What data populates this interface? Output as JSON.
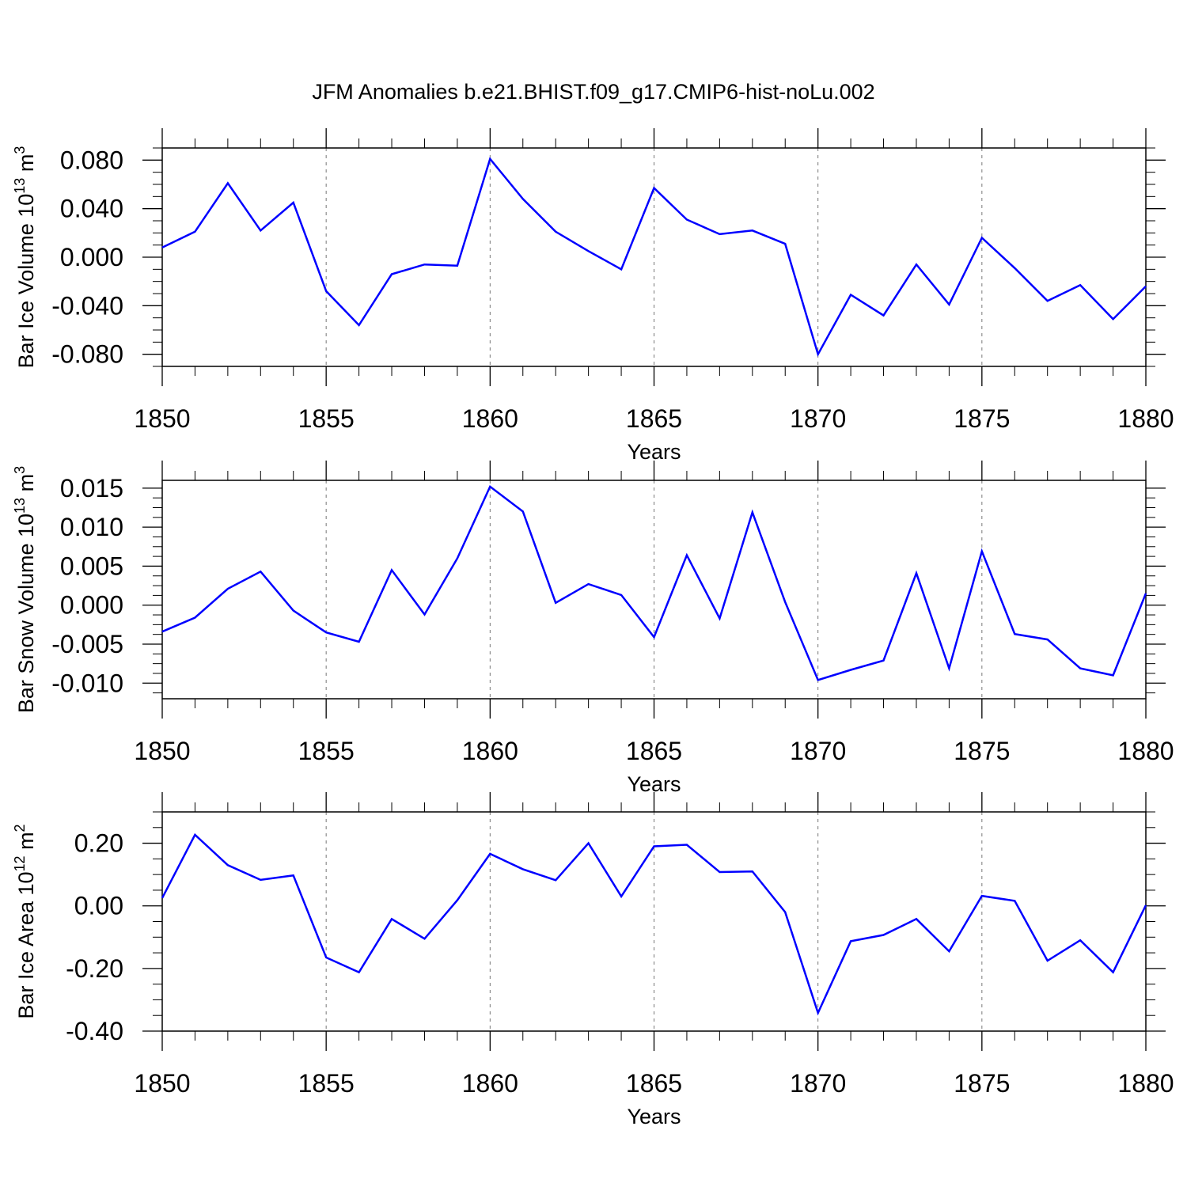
{
  "title": "JFM Anomalies b.e21.BHIST.f09_g17.CMIP6-hist-noLu.002",
  "chart_data": [
    {
      "type": "line",
      "xlabel": "Years",
      "ylabel": "Bar Ice Volume 10",
      "ylabel_exp": "13",
      "ylabel_unit": " m",
      "ylabel_unit_exp": "3",
      "xlim": [
        1850,
        1880
      ],
      "ylim": [
        -0.09,
        0.09
      ],
      "xticks": [
        1850,
        1855,
        1860,
        1865,
        1870,
        1875,
        1880
      ],
      "yticks": [
        "0.080",
        "0.040",
        "0.000",
        "-0.040",
        "-0.080"
      ],
      "ytick_values": [
        0.08,
        0.04,
        0.0,
        -0.04,
        -0.08
      ],
      "grid": "vertical dashed at major x ticks",
      "color": "#0000ff",
      "series": [
        {
          "x": [
            1850,
            1851,
            1852,
            1853,
            1854,
            1855,
            1856,
            1857,
            1858,
            1859,
            1860,
            1861,
            1862,
            1863,
            1864,
            1865,
            1866,
            1867,
            1868,
            1869,
            1870,
            1871,
            1872,
            1873,
            1874,
            1875,
            1876,
            1877,
            1878,
            1879,
            1880
          ],
          "values": [
            0.008,
            0.021,
            0.061,
            0.022,
            0.045,
            -0.028,
            -0.056,
            -0.014,
            -0.006,
            -0.007,
            0.081,
            0.048,
            0.021,
            0.005,
            -0.01,
            0.057,
            0.031,
            0.019,
            0.022,
            0.011,
            -0.08,
            -0.031,
            -0.048,
            -0.006,
            -0.039,
            0.016,
            -0.009,
            -0.036,
            -0.023,
            -0.051,
            -0.024
          ]
        }
      ]
    },
    {
      "type": "line",
      "xlabel": "Years",
      "ylabel": "Bar Snow Volume 10",
      "ylabel_exp": "13",
      "ylabel_unit": " m",
      "ylabel_unit_exp": "3",
      "xlim": [
        1850,
        1880
      ],
      "ylim": [
        -0.012,
        0.016
      ],
      "xticks": [
        1850,
        1855,
        1860,
        1865,
        1870,
        1875,
        1880
      ],
      "yticks": [
        "0.015",
        "0.010",
        "0.005",
        "0.000",
        "-0.005",
        "-0.010"
      ],
      "ytick_values": [
        0.015,
        0.01,
        0.005,
        0.0,
        -0.005,
        -0.01
      ],
      "grid": "vertical dashed at major x ticks",
      "color": "#0000ff",
      "series": [
        {
          "x": [
            1850,
            1851,
            1852,
            1853,
            1854,
            1855,
            1856,
            1857,
            1858,
            1859,
            1860,
            1861,
            1862,
            1863,
            1864,
            1865,
            1866,
            1867,
            1868,
            1869,
            1870,
            1871,
            1872,
            1873,
            1874,
            1875,
            1876,
            1877,
            1878,
            1879,
            1880
          ],
          "values": [
            -0.0034,
            -0.0016,
            0.0021,
            0.0043,
            -0.0007,
            -0.0035,
            -0.0047,
            0.0045,
            -0.0012,
            0.006,
            0.0152,
            0.012,
            0.0003,
            0.0027,
            0.0013,
            -0.0041,
            0.0064,
            -0.0017,
            0.0119,
            0.0004,
            -0.0096,
            -0.0083,
            -0.0071,
            0.0041,
            -0.0081,
            0.0069,
            -0.0037,
            -0.0044,
            -0.0081,
            -0.009,
            0.0015
          ]
        }
      ]
    },
    {
      "type": "line",
      "xlabel": "Years",
      "ylabel": "Bar Ice Area 10",
      "ylabel_exp": "12",
      "ylabel_unit": " m",
      "ylabel_unit_exp": "2",
      "xlim": [
        1850,
        1880
      ],
      "ylim": [
        -0.4,
        0.3
      ],
      "xticks": [
        1850,
        1855,
        1860,
        1865,
        1870,
        1875,
        1880
      ],
      "yticks": [
        "0.20",
        "0.00",
        "-0.20",
        "-0.40"
      ],
      "ytick_values": [
        0.2,
        0.0,
        -0.2,
        -0.4
      ],
      "grid": "vertical dashed at major x ticks",
      "color": "#0000ff",
      "series": [
        {
          "x": [
            1850,
            1851,
            1852,
            1853,
            1854,
            1855,
            1856,
            1857,
            1858,
            1859,
            1860,
            1861,
            1862,
            1863,
            1864,
            1865,
            1866,
            1867,
            1868,
            1869,
            1870,
            1871,
            1872,
            1873,
            1874,
            1875,
            1876,
            1877,
            1878,
            1879,
            1880
          ],
          "values": [
            0.025,
            0.227,
            0.13,
            0.083,
            0.097,
            -0.165,
            -0.212,
            -0.042,
            -0.105,
            0.018,
            0.166,
            0.117,
            0.082,
            0.2,
            0.03,
            0.19,
            0.195,
            0.108,
            0.11,
            -0.02,
            -0.342,
            -0.113,
            -0.093,
            -0.042,
            -0.145,
            0.032,
            0.016,
            -0.175,
            -0.11,
            -0.212,
            0.002
          ]
        }
      ]
    }
  ]
}
